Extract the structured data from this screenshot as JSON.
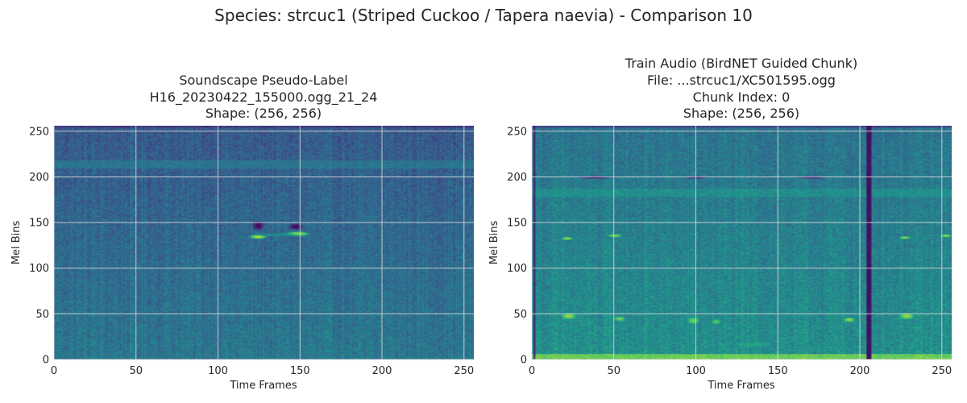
{
  "figure": {
    "suptitle": "Species: strcuc1 (Striped Cuckoo / Tapera naevia) - Comparison 10"
  },
  "colors": {
    "background": "#ffffff",
    "grid": "#dcdcdc",
    "colormap": "viridis",
    "text": "#262626"
  },
  "chart_data": [
    {
      "type": "heatmap",
      "title_lines": [
        "Soundscape Pseudo-Label",
        "H16_20230422_155000.ogg_21_24",
        "Shape: (256, 256)"
      ],
      "xlabel": "Time Frames",
      "ylabel": "Mel Bins",
      "xlim": [
        0,
        256
      ],
      "ylim": [
        0,
        256
      ],
      "xticks": [
        0,
        50,
        100,
        150,
        200,
        250
      ],
      "yticks": [
        0,
        50,
        100,
        150,
        200,
        250
      ],
      "grid": true,
      "base_level": 0.28,
      "bands": [
        {
          "y": 213,
          "width": 4,
          "level": 0.45
        },
        {
          "y": 255,
          "width": 1,
          "level": 0.1
        }
      ],
      "spots": [
        {
          "x": 124,
          "y": 134,
          "w": 6,
          "h": 3,
          "level": 0.92
        },
        {
          "x": 148,
          "y": 137,
          "w": 8,
          "h": 3,
          "level": 0.92
        },
        {
          "x": 124,
          "y": 146,
          "w": 4,
          "h": 6,
          "level": 0.02
        },
        {
          "x": 147,
          "y": 145,
          "w": 5,
          "h": 4,
          "level": 0.02
        },
        {
          "x": 136,
          "y": 136,
          "w": 18,
          "h": 2,
          "level": 0.5
        }
      ]
    },
    {
      "type": "heatmap",
      "title_lines": [
        "Train Audio (BirdNET Guided Chunk)",
        "File: ...strcuc1/XC501595.ogg",
        "Chunk Index: 0",
        "Shape: (256, 256)"
      ],
      "xlabel": "Time Frames",
      "ylabel": "Mel Bins",
      "xlim": [
        0,
        256
      ],
      "ylim": [
        0,
        256
      ],
      "xticks": [
        0,
        50,
        100,
        150,
        200,
        250
      ],
      "yticks": [
        0,
        50,
        100,
        150,
        200,
        250
      ],
      "grid": true,
      "base_level": 0.38,
      "bands": [
        {
          "y": 182,
          "width": 4,
          "level": 0.55
        },
        {
          "y": 0,
          "width": 5,
          "level": 0.95
        },
        {
          "y": 255,
          "width": 1,
          "level": 0.1
        }
      ],
      "vlines": [
        {
          "x": 205,
          "width": 2,
          "level": 0.02
        },
        {
          "x": 1,
          "width": 1,
          "level": 0.05
        }
      ],
      "spots": [
        {
          "x": 21,
          "y": 132,
          "w": 4,
          "h": 2,
          "level": 0.85
        },
        {
          "x": 50,
          "y": 135,
          "w": 5,
          "h": 2,
          "level": 0.85
        },
        {
          "x": 227,
          "y": 133,
          "w": 4,
          "h": 2,
          "level": 0.85
        },
        {
          "x": 252,
          "y": 135,
          "w": 4,
          "h": 2,
          "level": 0.85
        },
        {
          "x": 22,
          "y": 47,
          "w": 5,
          "h": 4,
          "level": 0.85
        },
        {
          "x": 53,
          "y": 44,
          "w": 4,
          "h": 3,
          "level": 0.8
        },
        {
          "x": 98,
          "y": 42,
          "w": 4,
          "h": 4,
          "level": 0.8
        },
        {
          "x": 112,
          "y": 41,
          "w": 3,
          "h": 3,
          "level": 0.75
        },
        {
          "x": 193,
          "y": 43,
          "w": 4,
          "h": 3,
          "level": 0.85
        },
        {
          "x": 228,
          "y": 47,
          "w": 5,
          "h": 4,
          "level": 0.85
        },
        {
          "x": 38,
          "y": 199,
          "w": 12,
          "h": 2,
          "level": 0.08
        },
        {
          "x": 100,
          "y": 199,
          "w": 8,
          "h": 2,
          "level": 0.1
        },
        {
          "x": 170,
          "y": 199,
          "w": 10,
          "h": 2,
          "level": 0.1
        },
        {
          "x": 135,
          "y": 16,
          "w": 12,
          "h": 3,
          "level": 0.6
        }
      ]
    }
  ]
}
